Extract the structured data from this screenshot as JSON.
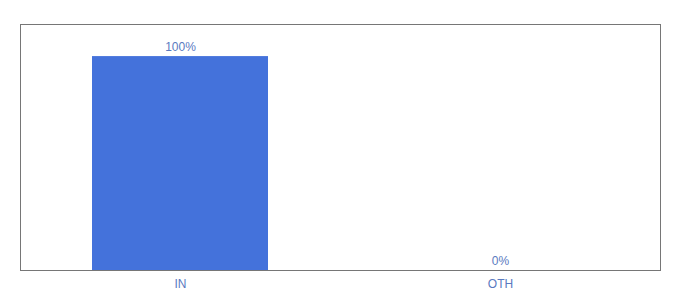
{
  "chart_data": {
    "type": "bar",
    "categories": [
      "IN",
      "OTH"
    ],
    "values": [
      100,
      0
    ],
    "color": "#4472db",
    "ylim": [
      0,
      115
    ],
    "data_labels": true,
    "value_labels": [
      "100%",
      "0%"
    ],
    "tick_labels": "x"
  }
}
